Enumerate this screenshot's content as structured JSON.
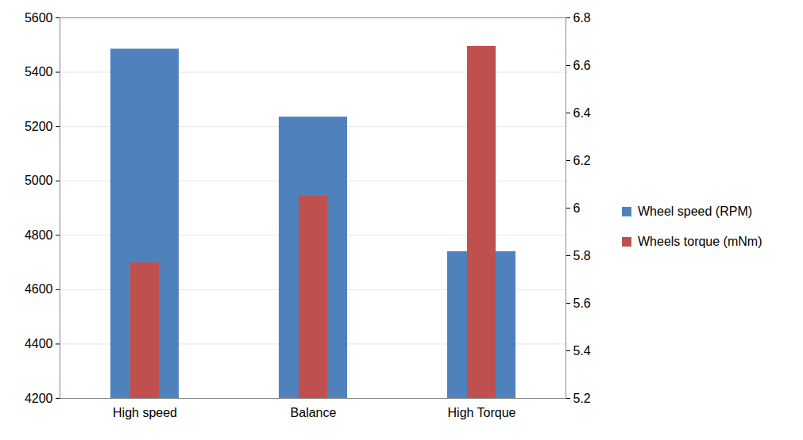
{
  "chart_data": {
    "type": "bar",
    "categories": [
      "High speed",
      "Balance",
      "High Torque"
    ],
    "series": [
      {
        "name": "Wheel speed (RPM)",
        "color": "#4f81bd",
        "values": [
          5485,
          5235,
          4740
        ]
      },
      {
        "name": "Wheels torque (mNm)",
        "color": "#c0504d",
        "values": [
          5.77,
          6.05,
          6.68
        ],
        "axis": "y2"
      }
    ],
    "ylim": [
      4200,
      5600
    ],
    "yticks": [
      4200,
      4400,
      4600,
      4800,
      5000,
      5200,
      5400,
      5600
    ],
    "y2lim": [
      5.2,
      6.8
    ],
    "y2ticks": [
      5.2,
      5.4,
      5.6,
      5.8,
      6,
      6.2,
      6.4,
      6.6,
      6.8
    ],
    "grid": true,
    "legend": "right"
  }
}
